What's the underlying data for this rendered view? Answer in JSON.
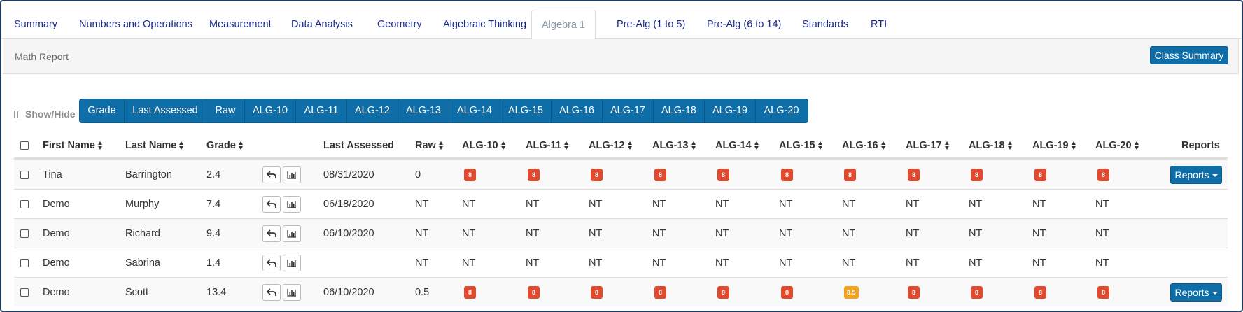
{
  "tabs": [
    "Summary",
    "Numbers and Operations",
    "Measurement",
    "Data Analysis",
    "Geometry",
    "Algebraic Thinking",
    "Algebra 1",
    "Pre-Alg (1 to 5)",
    "Pre-Alg (6 to 14)",
    "Standards",
    "RTI"
  ],
  "active_tab": "Algebra 1",
  "panel": {
    "title": "Math Report",
    "class_summary_label": "Class Summary"
  },
  "show_hide_label": "Show/Hide",
  "column_toggles": [
    "Grade",
    "Last Assessed",
    "Raw",
    "ALG-10",
    "ALG-11",
    "ALG-12",
    "ALG-13",
    "ALG-14",
    "ALG-15",
    "ALG-16",
    "ALG-17",
    "ALG-18",
    "ALG-19",
    "ALG-20"
  ],
  "table": {
    "headers": {
      "first_name": "First Name",
      "last_name": "Last Name",
      "grade": "Grade",
      "last_assessed": "Last Assessed",
      "raw": "Raw",
      "alg": [
        "ALG-10",
        "ALG-11",
        "ALG-12",
        "ALG-13",
        "ALG-14",
        "ALG-15",
        "ALG-16",
        "ALG-17",
        "ALG-18",
        "ALG-19",
        "ALG-20"
      ],
      "reports": "Reports"
    },
    "rows": [
      {
        "first": "Tina",
        "last": "Barrington",
        "grade": "2.4",
        "last_assessed": "08/31/2020",
        "raw": "0",
        "alg": [
          "8",
          "8",
          "8",
          "8",
          "8",
          "8",
          "8",
          "8",
          "8",
          "8",
          "8"
        ],
        "alg_status": [
          "red",
          "red",
          "red",
          "red",
          "red",
          "red",
          "red",
          "red",
          "red",
          "red",
          "red"
        ],
        "reports": "Reports"
      },
      {
        "first": "Demo",
        "last": "Murphy",
        "grade": "7.4",
        "last_assessed": "06/18/2020",
        "raw": "NT",
        "alg": [
          "NT",
          "NT",
          "NT",
          "NT",
          "NT",
          "NT",
          "NT",
          "NT",
          "NT",
          "NT",
          "NT"
        ],
        "alg_status": [
          "text",
          "text",
          "text",
          "text",
          "text",
          "text",
          "text",
          "text",
          "text",
          "text",
          "text"
        ],
        "reports": ""
      },
      {
        "first": "Demo",
        "last": "Richard",
        "grade": "9.4",
        "last_assessed": "06/10/2020",
        "raw": "NT",
        "alg": [
          "NT",
          "NT",
          "NT",
          "NT",
          "NT",
          "NT",
          "NT",
          "NT",
          "NT",
          "NT",
          "NT"
        ],
        "alg_status": [
          "text",
          "text",
          "text",
          "text",
          "text",
          "text",
          "text",
          "text",
          "text",
          "text",
          "text"
        ],
        "reports": ""
      },
      {
        "first": "Demo",
        "last": "Sabrina",
        "grade": "1.4",
        "last_assessed": "",
        "raw": "NT",
        "alg": [
          "NT",
          "NT",
          "NT",
          "NT",
          "NT",
          "NT",
          "NT",
          "NT",
          "NT",
          "NT",
          "NT"
        ],
        "alg_status": [
          "text",
          "text",
          "text",
          "text",
          "text",
          "text",
          "text",
          "text",
          "text",
          "text",
          "text"
        ],
        "reports": ""
      },
      {
        "first": "Demo",
        "last": "Scott",
        "grade": "13.4",
        "last_assessed": "06/10/2020",
        "raw": "0.5",
        "alg": [
          "8",
          "8",
          "8",
          "8",
          "8",
          "8",
          "8.5",
          "8",
          "8",
          "8",
          "8"
        ],
        "alg_status": [
          "red",
          "red",
          "red",
          "red",
          "red",
          "red",
          "orange",
          "red",
          "red",
          "red",
          "red"
        ],
        "reports": "Reports"
      }
    ]
  },
  "colors": {
    "accent": "#0f6ea8",
    "link": "#1a2a8c",
    "badge_red": "#e04a2f",
    "badge_orange": "#f4a41c"
  },
  "icons": {
    "reset": "undo-arrow-icon",
    "chart": "bar-chart-icon"
  }
}
